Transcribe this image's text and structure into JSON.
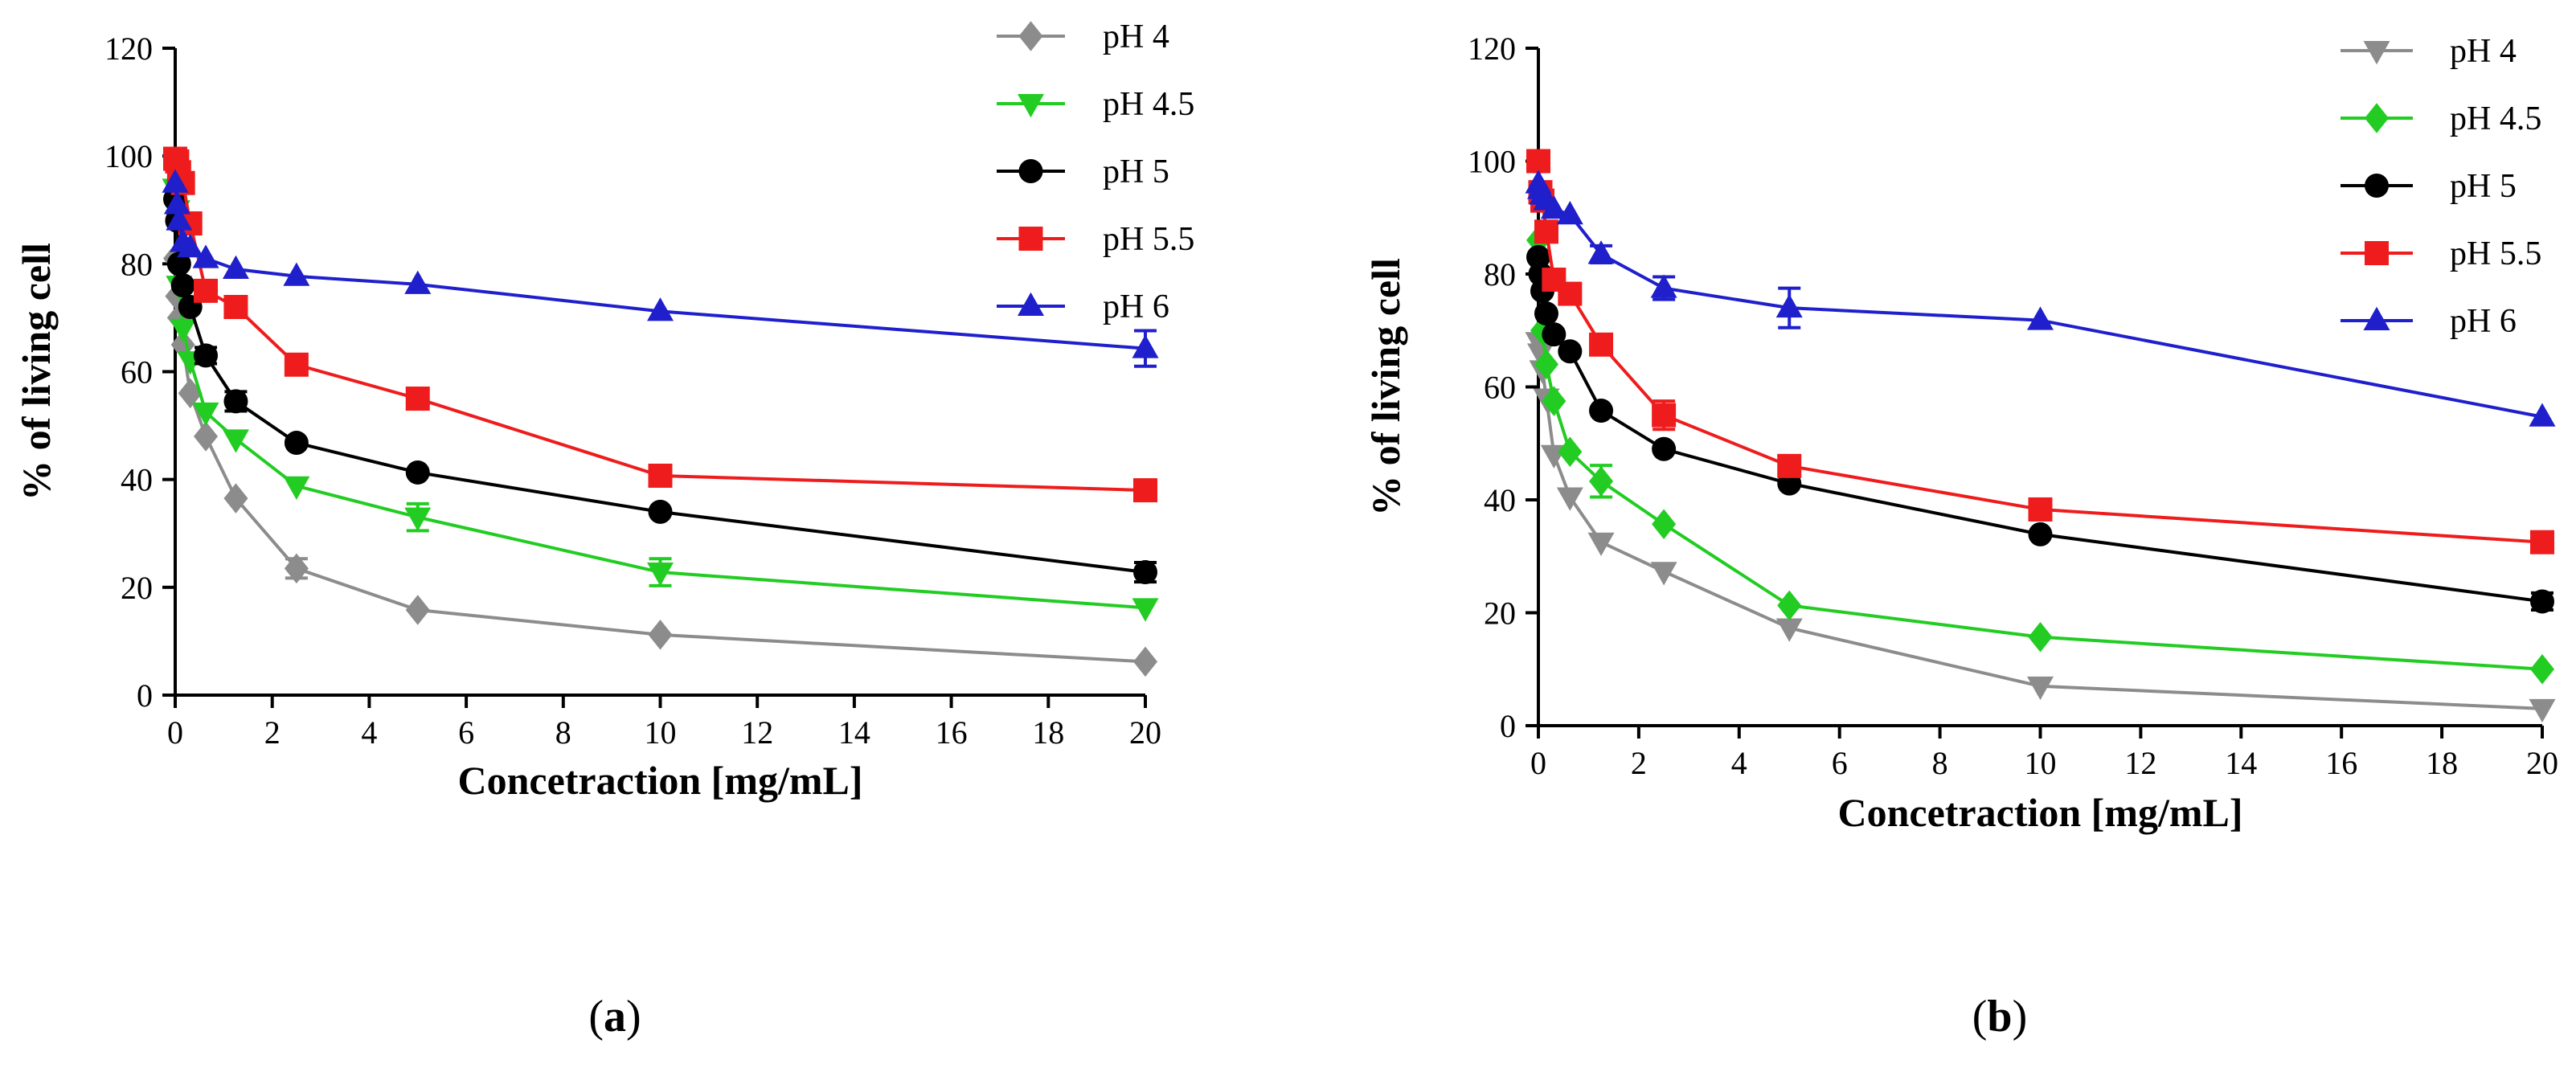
{
  "chart_data": [
    {
      "type": "line",
      "panel_label": "(a)",
      "panel_letter": "a",
      "xlabel": "Concetraction [mg/mL]",
      "ylabel": "% of living cell",
      "xlim": [
        0,
        20
      ],
      "ylim": [
        0,
        120
      ],
      "xticks": [
        0,
        2,
        4,
        6,
        8,
        10,
        12,
        14,
        16,
        18,
        20
      ],
      "yticks": [
        0,
        20,
        40,
        60,
        80,
        100,
        120
      ],
      "grid": false,
      "legend_position": "top-right",
      "x": [
        0,
        0.04,
        0.08,
        0.16,
        0.31,
        0.63,
        1.25,
        2.5,
        5,
        10,
        20
      ],
      "series": [
        {
          "name": "pH 4",
          "color": "#8c8c8c",
          "marker": "diamond",
          "values": [
            81,
            74,
            70,
            65,
            56,
            48,
            36.5,
            23.5,
            15.8,
            11.2,
            6.2
          ],
          "errors": [
            0,
            0,
            0,
            0,
            0,
            0,
            0,
            1.8,
            0,
            0,
            0
          ]
        },
        {
          "name": "pH 4.5",
          "color": "#22cc22",
          "marker": "triangle-down",
          "values": [
            94,
            90,
            76,
            68,
            62,
            52.5,
            47.5,
            38.8,
            33,
            22.8,
            16.2
          ],
          "errors": [
            0,
            0,
            0,
            0,
            0,
            0,
            0,
            0,
            2.5,
            2.5,
            0
          ]
        },
        {
          "name": "pH 5",
          "color": "#000000",
          "marker": "circle",
          "values": [
            92,
            88,
            80,
            76,
            72,
            63,
            54.5,
            46.8,
            41.3,
            34,
            22.8
          ],
          "errors": [
            0,
            0,
            0,
            0,
            0,
            1.5,
            1.8,
            0,
            0,
            0,
            1.8
          ]
        },
        {
          "name": "pH 5.5",
          "color": "#ee1c1c",
          "marker": "square",
          "values": [
            99.5,
            99,
            97,
            95,
            87.5,
            75,
            72,
            61.3,
            55,
            40.7,
            38
          ],
          "errors": [
            0,
            0,
            0,
            0,
            0,
            0,
            0,
            0,
            0,
            0,
            0
          ]
        },
        {
          "name": "pH 6",
          "color": "#1f1fcc",
          "marker": "triangle-up",
          "values": [
            95,
            91,
            88,
            84,
            83,
            81,
            79,
            77.7,
            76.2,
            71.2,
            64.3
          ],
          "errors": [
            0,
            0,
            0,
            0,
            0,
            0,
            0,
            0,
            0,
            0,
            3.3
          ]
        }
      ]
    },
    {
      "type": "line",
      "panel_label": "(b)",
      "panel_letter": "b",
      "xlabel": "Concetraction [mg/mL]",
      "ylabel": "% of living cell",
      "xlim": [
        0,
        20
      ],
      "ylim": [
        0,
        120
      ],
      "xticks": [
        0,
        2,
        4,
        6,
        8,
        10,
        12,
        14,
        16,
        18,
        20
      ],
      "yticks": [
        0,
        20,
        40,
        60,
        80,
        100,
        120
      ],
      "grid": false,
      "legend_position": "top-right",
      "x": [
        0,
        0.04,
        0.08,
        0.16,
        0.31,
        0.63,
        1.25,
        2.5,
        5,
        10,
        20
      ],
      "series": [
        {
          "name": "pH 4",
          "color": "#8c8c8c",
          "marker": "triangle-down",
          "values": [
            68,
            66,
            63,
            58,
            48,
            40.5,
            32.5,
            27.3,
            17.3,
            7,
            3
          ],
          "errors": [
            0,
            0,
            0,
            0,
            0,
            0,
            0,
            0,
            0,
            0,
            0
          ]
        },
        {
          "name": "pH 4.5",
          "color": "#22cc22",
          "marker": "diamond",
          "values": [
            86,
            80,
            70,
            64,
            57.5,
            48.5,
            43.3,
            35.7,
            21.3,
            15.7,
            10
          ],
          "errors": [
            0,
            0,
            0,
            0,
            0,
            0,
            2.8,
            0,
            0,
            0,
            0
          ]
        },
        {
          "name": "pH 5",
          "color": "#000000",
          "marker": "circle",
          "values": [
            83,
            80,
            77,
            73,
            69.3,
            66.3,
            55.8,
            49,
            42.9,
            33.9,
            22
          ],
          "errors": [
            0,
            0,
            0,
            0,
            0,
            0,
            0,
            0,
            0,
            0,
            1.5
          ]
        },
        {
          "name": "pH 5.5",
          "color": "#ee1c1c",
          "marker": "square",
          "values": [
            100,
            94.5,
            93,
            87.5,
            79,
            76.5,
            67.5,
            55,
            46,
            38.3,
            32.5
          ],
          "errors": [
            0,
            0,
            0,
            0,
            0,
            1.5,
            0,
            2.5,
            0,
            0,
            0
          ]
        },
        {
          "name": "pH 6",
          "color": "#1f1fcc",
          "marker": "triangle-up",
          "values": [
            96,
            95,
            94,
            93,
            91.5,
            90.5,
            83.5,
            77.5,
            74,
            71.8,
            54.7
          ],
          "errors": [
            0,
            0,
            0,
            0,
            0,
            0,
            1.5,
            2,
            3.5,
            0,
            0
          ]
        }
      ]
    }
  ]
}
